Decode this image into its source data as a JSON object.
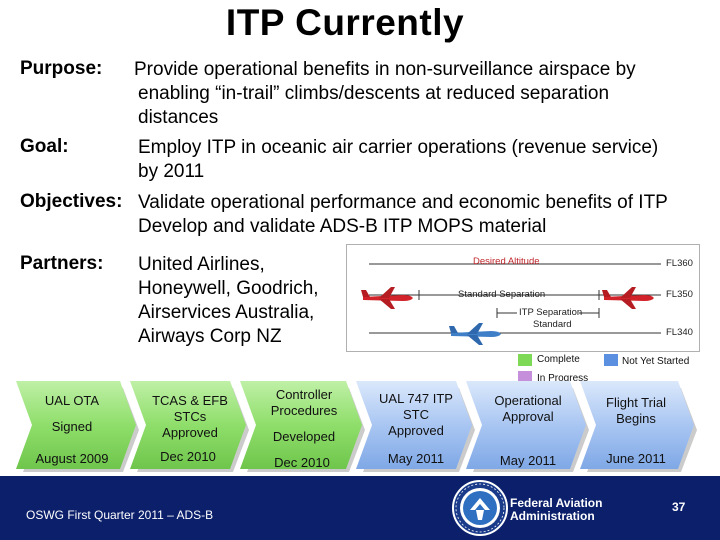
{
  "title": "ITP Currently",
  "sections": {
    "purpose": {
      "label": "Purpose:",
      "lines": [
        "Provide operational benefits in non-surveillance airspace by",
        "enabling “in-trail” climbs/descents at reduced separation",
        "distances"
      ]
    },
    "goal": {
      "label": "Goal:",
      "lines": [
        "Employ ITP in oceanic air carrier operations (revenue service)",
        "by 2011"
      ]
    },
    "objectives": {
      "label": "Objectives:",
      "lines": [
        "Validate operational performance and economic benefits of ITP",
        "Develop and validate ADS-B ITP MOPS material"
      ]
    },
    "partners": {
      "label": "Partners:",
      "lines": [
        "United Airlines,",
        "Honeywell, Goodrich,",
        "Airservices  Australia,",
        "Airways Corp NZ"
      ]
    }
  },
  "diagram": {
    "desired_altitude": "Desired Altitude",
    "standard_separation": "Standard Separation",
    "itp_separation_line1": "ITP Separation",
    "itp_separation_line2": "Standard",
    "fl360": "FL360",
    "fl350": "FL350",
    "fl340": "FL340"
  },
  "legend": {
    "complete": "Complete",
    "not_yet_started": "Not Yet Started",
    "in_progress": "In Progress",
    "colors": {
      "complete": "#7ed957",
      "not_yet_started": "#5b8fe0",
      "in_progress": "#c58fdc"
    }
  },
  "timeline": [
    {
      "lines": [
        "UAL OTA",
        "",
        "Signed"
      ],
      "date": "August 2009"
    },
    {
      "lines": [
        "TCAS & EFB",
        "STCs",
        "Approved"
      ],
      "date": "Dec  2010"
    },
    {
      "lines": [
        "Controller",
        "Procedures",
        "",
        "Developed"
      ],
      "date": "Dec 2010"
    },
    {
      "lines": [
        "UAL 747 ITP",
        "STC",
        "Approved"
      ],
      "date": "May 2011"
    },
    {
      "lines": [
        "Operational",
        "Approval"
      ],
      "date": "May 2011"
    },
    {
      "lines": [
        "Flight Trial",
        "Begins"
      ],
      "date": "June 2011"
    }
  ],
  "footer": {
    "left": "OSWG First Quarter 2011 – ADS-B",
    "agency_line1": "Federal Aviation",
    "agency_line2": "Administration",
    "page_number": "37"
  }
}
